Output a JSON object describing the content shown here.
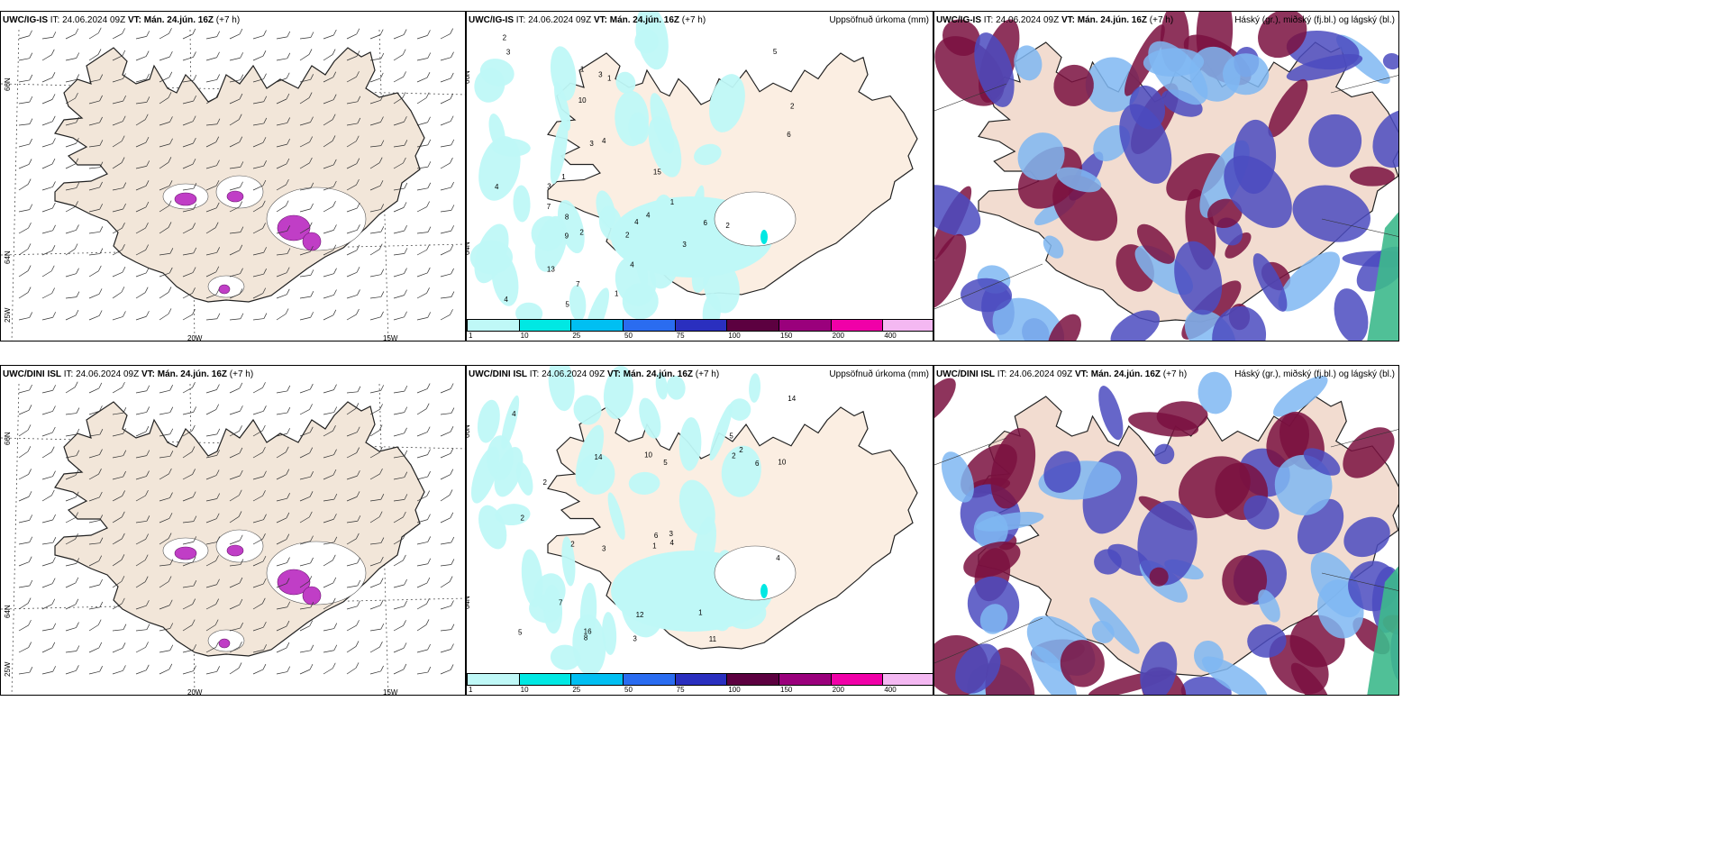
{
  "common": {
    "it_label": "IT:",
    "it_value": "24.06.2024 09Z",
    "vt_label": "VT:",
    "vt_value": "Mán. 24.jún. 16Z",
    "lead": "(+7 h)"
  },
  "rows": [
    {
      "model": "UWC/IG-IS",
      "panels": {
        "wind": {
          "title_model": "UWC/IG-IS"
        },
        "precip": {
          "title_model": "UWC/IG-IS",
          "right_title": "Uppsöfnuð úrkoma (mm)"
        },
        "cloud": {
          "title_model": "UWC/IG-IS",
          "right_title": "Háský (gr.), miðský (fj.bl.) og lágský (bl.)"
        }
      }
    },
    {
      "model": "UWC/DINI ISL",
      "panels": {
        "wind": {
          "title_model": "UWC/DINI ISL"
        },
        "precip": {
          "title_model": "UWC/DINI ISL",
          "right_title": "Uppsöfnuð úrkoma (mm)"
        },
        "cloud": {
          "title_model": "UWC/DINI ISL",
          "right_title": "Háský (gr.), miðský (fj.bl.) og lágský (bl.)"
        }
      }
    }
  ],
  "axis_labels": {
    "lat_66": "66N",
    "lat_64": "64N",
    "lon_20": "20W",
    "lon_15": "15W",
    "lon_25": "25W"
  },
  "colorbar": {
    "ticks": [
      "1",
      "10",
      "25",
      "50",
      "75",
      "100",
      "150",
      "200",
      "400"
    ],
    "colors": [
      "#bff8f7",
      "#00e8e3",
      "#00bff2",
      "#2a6cf0",
      "#2a2fbf",
      "#5c0040",
      "#9a007c",
      "#f000a8",
      "#f4b8f2"
    ]
  },
  "colors": {
    "land": "#f2e6d9",
    "precip_light": "#bff8f7",
    "sea": "#ffffff",
    "high_cloud": "#7a1040",
    "mid_cloud": "#4b4bbf",
    "low_cloud": "#7fb7f2"
  },
  "precip_values_row1": [
    "3",
    "2",
    "4",
    "5",
    "2",
    "3",
    "1",
    "2",
    "4",
    "6",
    "9",
    "15",
    "5",
    "7",
    "4",
    "3",
    "2",
    "13",
    "10",
    "4",
    "6",
    "4",
    "7",
    "1",
    "3",
    "4",
    "8",
    "2",
    "1",
    "3",
    "1",
    "1"
  ],
  "precip_values_row2": [
    "5",
    "2",
    "4",
    "3",
    "2",
    "7",
    "10",
    "14",
    "12",
    "6",
    "11",
    "4",
    "5",
    "14",
    "16",
    "3",
    "2",
    "1",
    "4",
    "6",
    "2",
    "3",
    "5",
    "8",
    "1",
    "2",
    "10"
  ]
}
